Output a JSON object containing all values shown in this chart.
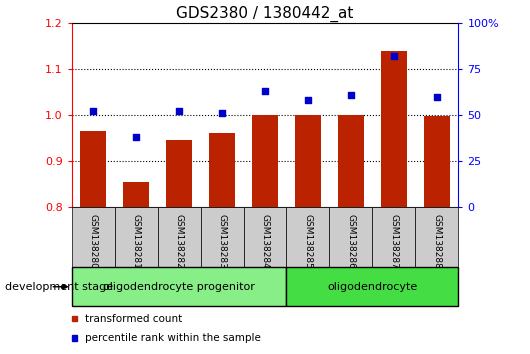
{
  "title": "GDS2380 / 1380442_at",
  "categories": [
    "GSM138280",
    "GSM138281",
    "GSM138282",
    "GSM138283",
    "GSM138284",
    "GSM138285",
    "GSM138286",
    "GSM138287",
    "GSM138288"
  ],
  "bar_values": [
    0.965,
    0.855,
    0.945,
    0.96,
    1.0,
    1.0,
    1.0,
    1.14,
    0.998
  ],
  "scatter_values": [
    52,
    38,
    52,
    51,
    63,
    58,
    61,
    82,
    60
  ],
  "bar_color": "#bb2200",
  "scatter_color": "#0000cc",
  "ylim_left": [
    0.8,
    1.2
  ],
  "ylim_right": [
    0,
    100
  ],
  "yticks_left": [
    0.8,
    0.9,
    1.0,
    1.1,
    1.2
  ],
  "yticks_right": [
    0,
    25,
    50,
    75,
    100
  ],
  "ytick_labels_right": [
    "0",
    "25",
    "50",
    "75",
    "100%"
  ],
  "grid_values": [
    0.9,
    1.0,
    1.1
  ],
  "groups": [
    {
      "label": "oligodendrocyte progenitor",
      "start": 0,
      "end": 4,
      "color": "#88ee88"
    },
    {
      "label": "oligodendrocyte",
      "start": 5,
      "end": 8,
      "color": "#44dd44"
    }
  ],
  "dev_stage_label": "development stage",
  "legend_items": [
    {
      "label": "transformed count",
      "color": "#bb2200"
    },
    {
      "label": "percentile rank within the sample",
      "color": "#0000cc"
    }
  ],
  "bar_width": 0.6
}
